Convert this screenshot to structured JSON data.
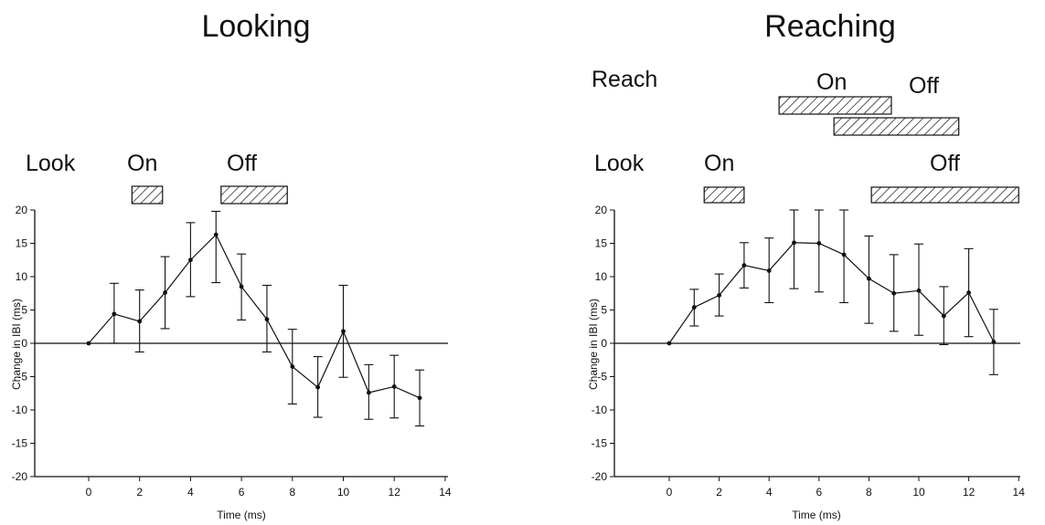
{
  "chart_data": [
    {
      "type": "line",
      "title": "Looking",
      "xlabel": "Time (ms)",
      "ylabel": "Change in IBI (ms)",
      "xlim": [
        -1,
        14
      ],
      "ylim": [
        -20,
        20
      ],
      "xticks": [
        0,
        2,
        4,
        6,
        8,
        10,
        12,
        14
      ],
      "yticks": [
        20,
        15,
        10,
        5,
        0,
        -5,
        -10,
        -15,
        -20
      ],
      "series": [
        {
          "x": [
            0,
            1,
            2,
            3,
            4,
            5,
            6,
            7,
            8,
            9,
            10,
            11,
            12,
            13
          ],
          "values": [
            0,
            4.4,
            3.3,
            7.6,
            12.5,
            16.3,
            8.5,
            3.6,
            -3.5,
            -6.6,
            1.8,
            -7.4,
            -6.5,
            -8.2
          ],
          "err_low": [
            0,
            0,
            -1.3,
            2.2,
            7.0,
            9.1,
            3.5,
            -1.3,
            -9.1,
            -11.1,
            -5.1,
            -11.4,
            -11.2,
            -12.4
          ],
          "err_high": [
            0,
            9.0,
            8.0,
            13.0,
            18.1,
            19.8,
            13.4,
            8.7,
            2.1,
            -2.0,
            8.7,
            -3.2,
            -1.8,
            -4.0
          ]
        }
      ],
      "events": [
        {
          "row": "Look",
          "label_on": "On",
          "label_off": "Off",
          "bars": [
            [
              1.7,
              2.9
            ],
            [
              5.2,
              7.8
            ]
          ]
        }
      ]
    },
    {
      "type": "line",
      "title": "Reaching",
      "xlabel": "Time (ms)",
      "ylabel": "Change in IBI (ms)",
      "xlim": [
        -1,
        14
      ],
      "ylim": [
        -20,
        20
      ],
      "xticks": [
        0,
        2,
        4,
        6,
        8,
        10,
        12,
        14
      ],
      "yticks": [
        20,
        15,
        10,
        5,
        0,
        -5,
        -10,
        -15,
        -20
      ],
      "series": [
        {
          "x": [
            0,
            1,
            2,
            3,
            4,
            5,
            6,
            7,
            8,
            9,
            10,
            11,
            12,
            13
          ],
          "values": [
            0,
            5.4,
            7.2,
            11.7,
            10.9,
            15.1,
            15.0,
            13.3,
            9.7,
            7.5,
            7.9,
            4.1,
            7.6,
            0.2
          ],
          "err_low": [
            0,
            2.6,
            4.1,
            8.3,
            6.1,
            8.2,
            7.7,
            6.1,
            3.0,
            1.8,
            1.2,
            -0.2,
            1.0,
            -4.7
          ],
          "err_high": [
            0,
            8.1,
            10.4,
            15.1,
            15.8,
            20.0,
            20.0,
            20.0,
            16.1,
            13.3,
            14.9,
            8.5,
            14.2,
            5.1
          ]
        }
      ],
      "events": [
        {
          "row": "Look",
          "label_on": "On",
          "label_off": "Off",
          "bars": [
            [
              1.4,
              3.0
            ],
            [
              8.1,
              14.0
            ]
          ]
        },
        {
          "row": "Reach",
          "label_on": "On",
          "label_off": "Off",
          "bars": [
            [
              4.4,
              8.9
            ],
            [
              6.6,
              11.6
            ]
          ]
        }
      ]
    }
  ]
}
